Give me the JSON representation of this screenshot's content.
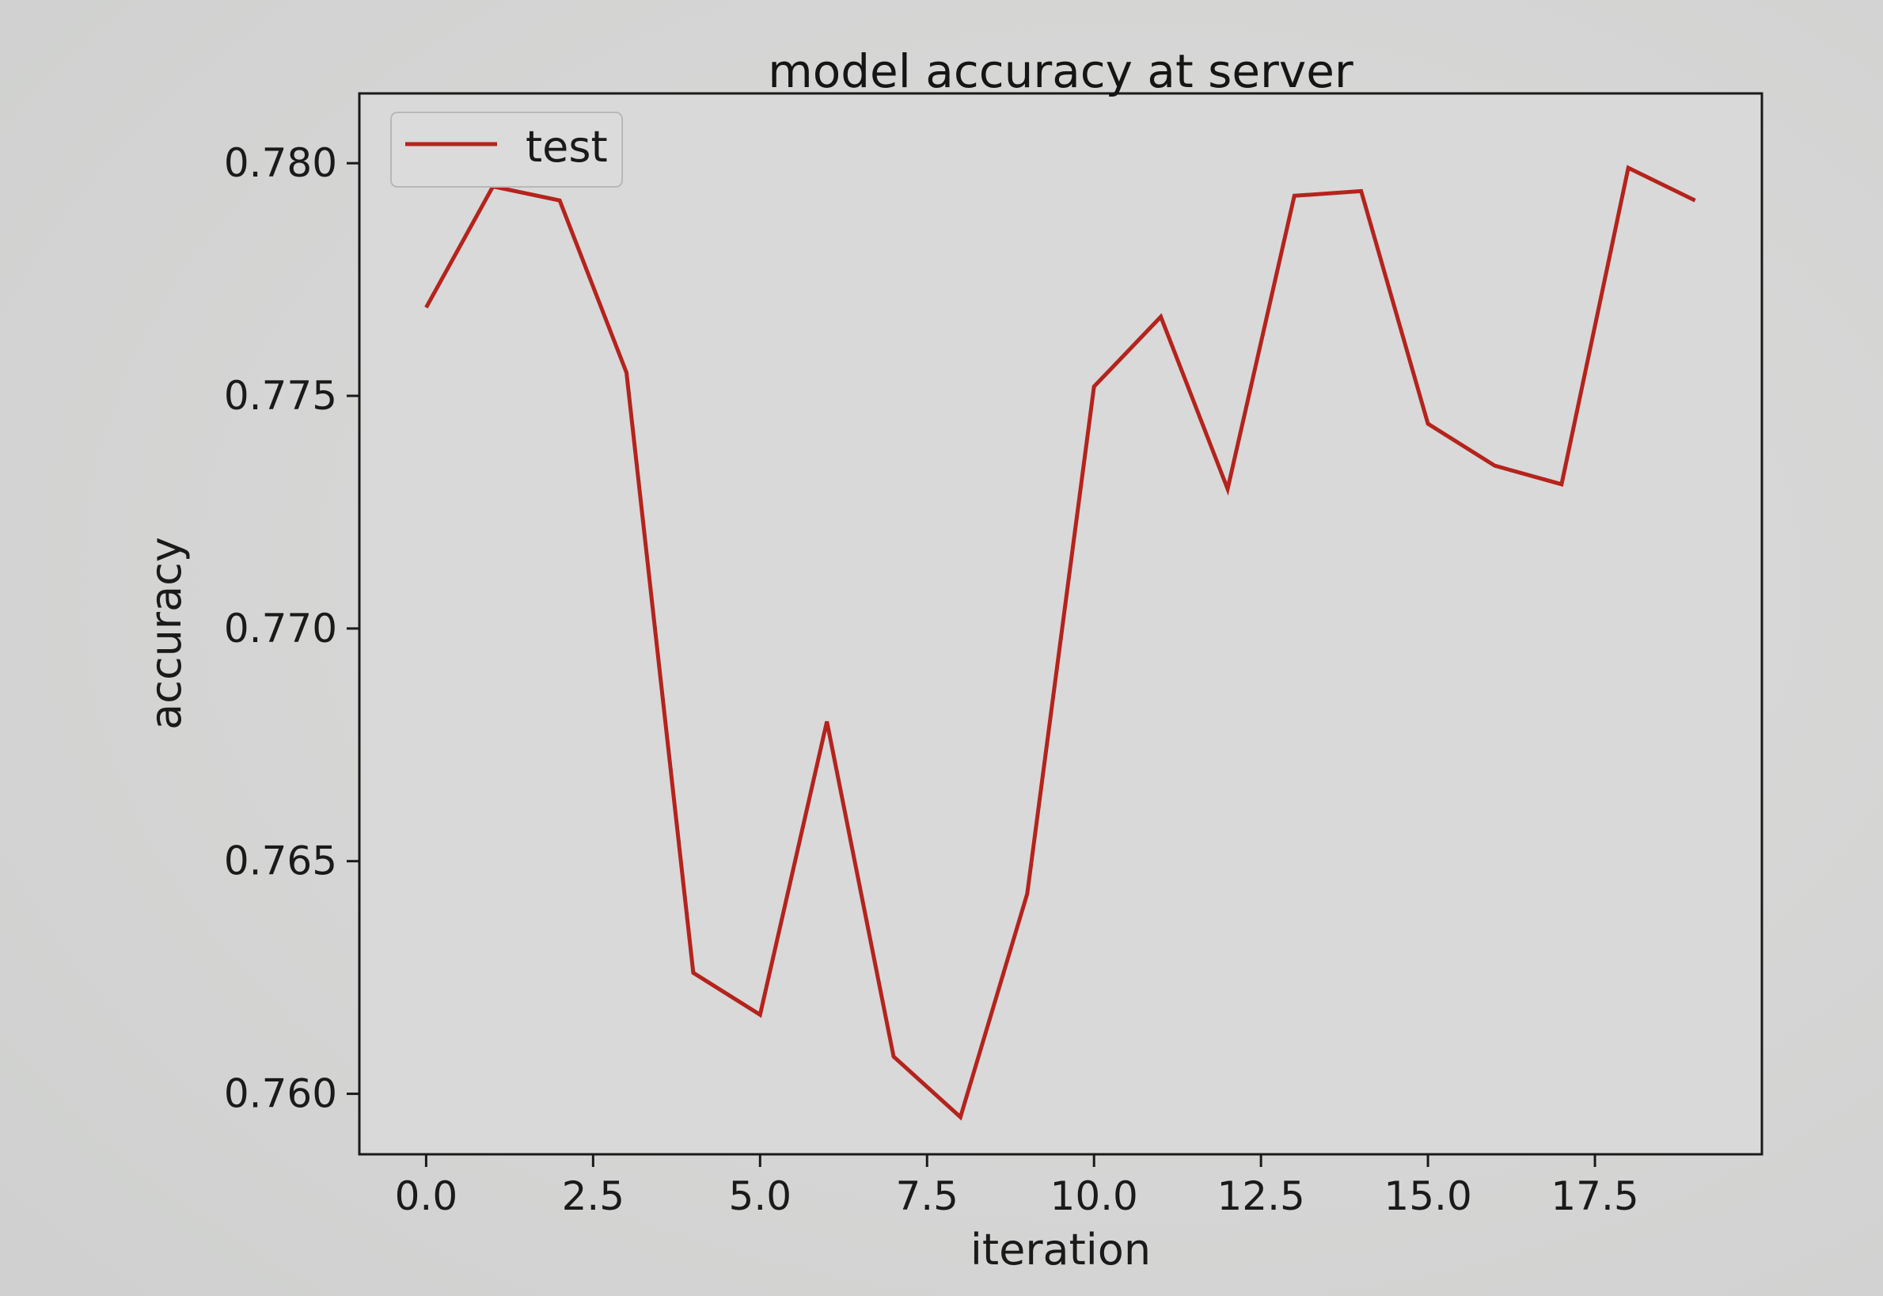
{
  "chart_data": {
    "type": "line",
    "title": "model accuracy at server",
    "xlabel": "iteration",
    "ylabel": "accuracy",
    "xlim": [
      -1,
      20
    ],
    "ylim": [
      0.7587,
      0.7815
    ],
    "x_ticks": [
      0.0,
      2.5,
      5.0,
      7.5,
      10.0,
      12.5,
      15.0,
      17.5
    ],
    "x_tick_labels": [
      "0.0",
      "2.5",
      "5.0",
      "7.5",
      "10.0",
      "12.5",
      "15.0",
      "17.5"
    ],
    "y_ticks": [
      0.76,
      0.765,
      0.77,
      0.775,
      0.78
    ],
    "y_tick_labels": [
      "0.760",
      "0.765",
      "0.770",
      "0.775",
      "0.780"
    ],
    "legend_position": "top-left",
    "grid": false,
    "series": [
      {
        "name": "test",
        "color": "#b5231d",
        "x": [
          0,
          1,
          2,
          3,
          4,
          5,
          6,
          7,
          8,
          9,
          10,
          11,
          12,
          13,
          14,
          15,
          16,
          17,
          18,
          19
        ],
        "y": [
          0.7769,
          0.7795,
          0.7792,
          0.7755,
          0.7626,
          0.7617,
          0.768,
          0.7608,
          0.7595,
          0.7643,
          0.7752,
          0.7767,
          0.773,
          0.7793,
          0.7794,
          0.7744,
          0.7735,
          0.7731,
          0.7799,
          0.7792
        ]
      }
    ]
  }
}
